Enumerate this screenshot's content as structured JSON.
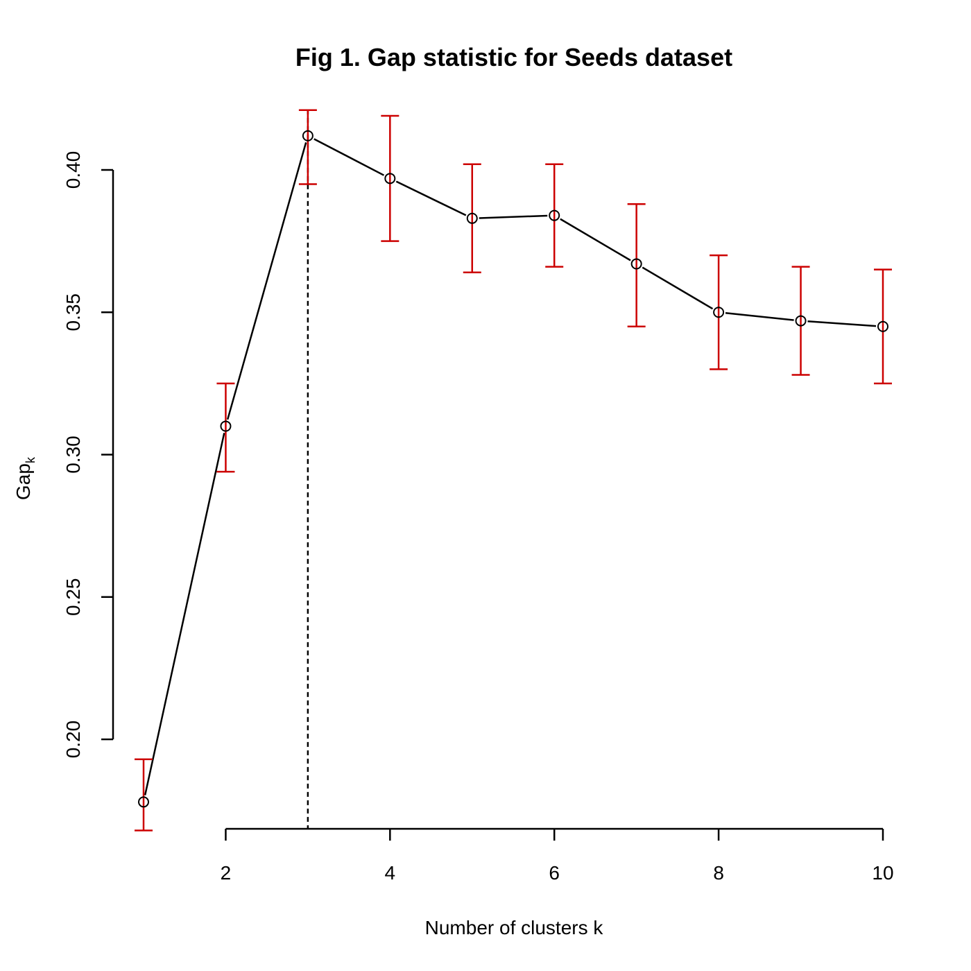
{
  "chart_data": {
    "type": "scatter",
    "title": "Fig 1. Gap statistic for Seeds dataset",
    "xlabel": "Number of clusters k",
    "ylabel_main": "Gap",
    "ylabel_sub": "k",
    "xlim": [
      0.9,
      10.1
    ],
    "ylim": [
      0.168,
      0.42
    ],
    "x_ticks": [
      2,
      4,
      6,
      8,
      10
    ],
    "y_ticks": [
      0.2,
      0.25,
      0.3,
      0.35,
      0.4
    ],
    "x_tick_labels": [
      "2",
      "4",
      "6",
      "8",
      "10"
    ],
    "y_tick_labels": [
      "0.20",
      "0.25",
      "0.30",
      "0.35",
      "0.40"
    ],
    "vline_x": 3,
    "grid": false,
    "series": [
      {
        "x": [
          1,
          2,
          3,
          4,
          5,
          6,
          7,
          8,
          9,
          10
        ],
        "values": [
          0.178,
          0.31,
          0.412,
          0.397,
          0.383,
          0.384,
          0.367,
          0.35,
          0.347,
          0.345
        ],
        "err_low": [
          0.168,
          0.294,
          0.395,
          0.375,
          0.364,
          0.366,
          0.345,
          0.33,
          0.328,
          0.325
        ],
        "err_high": [
          0.193,
          0.325,
          0.421,
          0.419,
          0.402,
          0.402,
          0.388,
          0.37,
          0.366,
          0.365
        ]
      }
    ],
    "colors": {
      "line": "#000000",
      "error_bar": "#cc0000",
      "marker": "#000000"
    }
  }
}
